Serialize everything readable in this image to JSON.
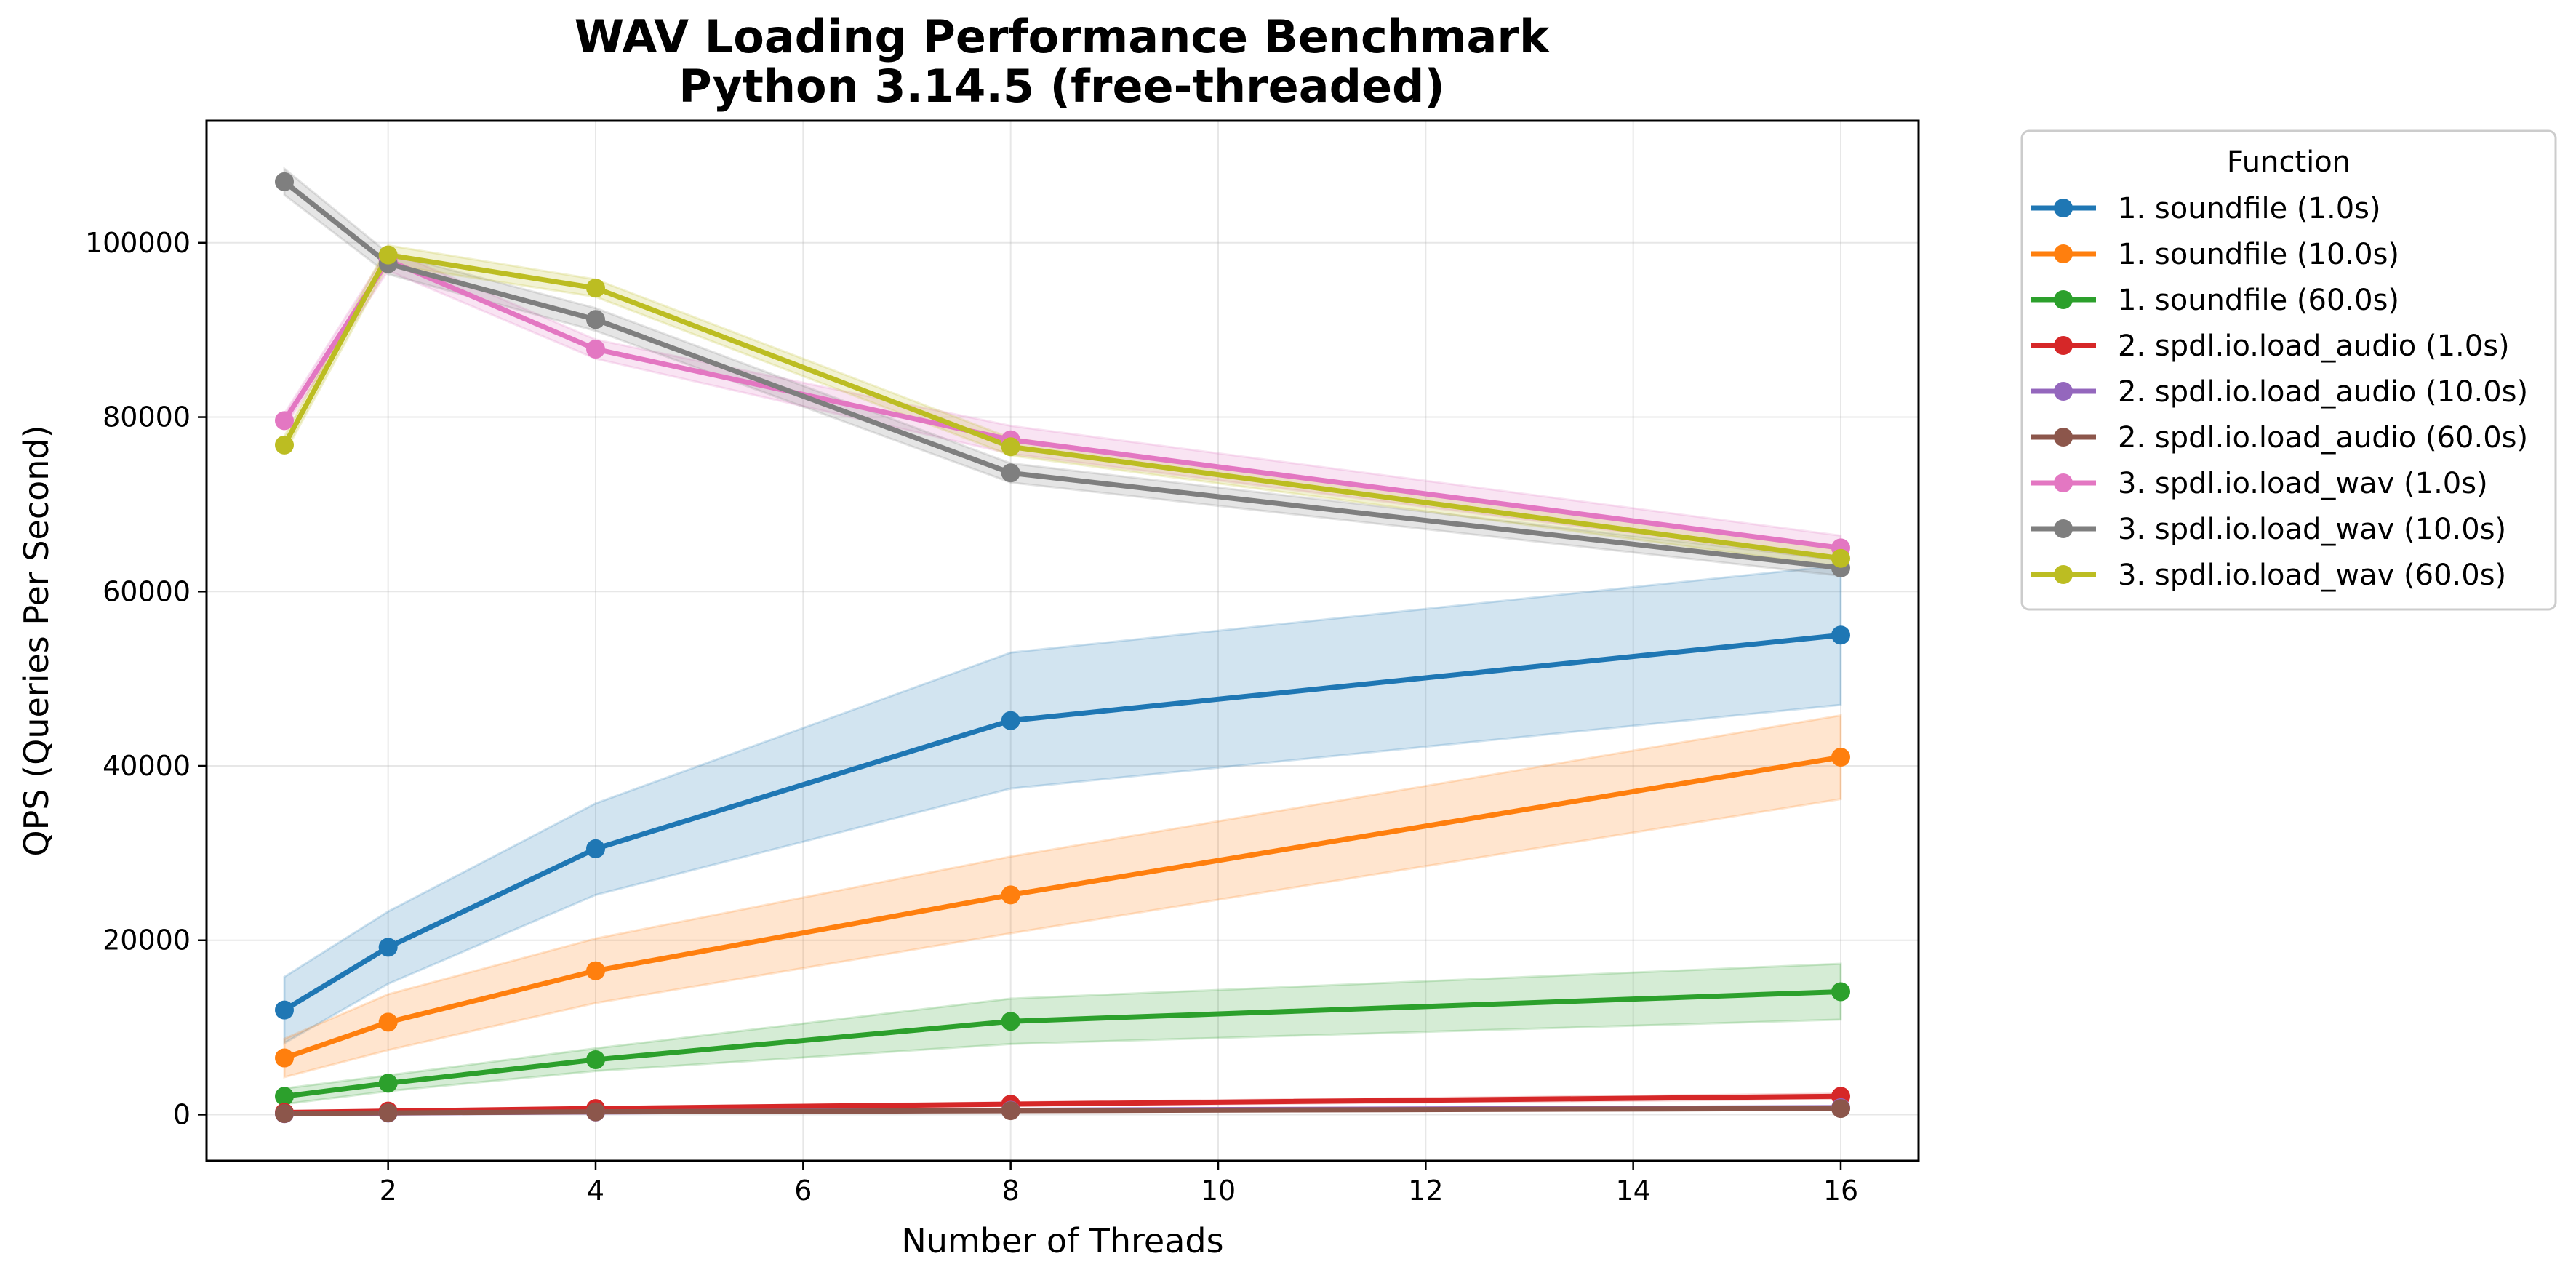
{
  "chart_data": {
    "type": "line",
    "title": "WAV Loading Performance Benchmark",
    "subtitle": "Python 3.14.5 (free-threaded)",
    "xlabel": "Number of Threads",
    "ylabel": "QPS (Queries Per Second)",
    "xlim": [
      0.25,
      16.75
    ],
    "ylim": [
      -5300,
      114000
    ],
    "xticks": [
      2,
      4,
      6,
      8,
      10,
      12,
      14,
      16
    ],
    "yticks": [
      0,
      20000,
      40000,
      60000,
      80000,
      100000
    ],
    "grid": true,
    "legend_title": "Function",
    "legend_position": "outside-right",
    "x": [
      1,
      2,
      4,
      8,
      16
    ],
    "series": [
      {
        "name": "1. soundfile (1.0s)",
        "color": "#1f77b4",
        "values": [
          12000,
          19200,
          30500,
          45200,
          55000
        ],
        "band_low": [
          8200,
          15000,
          25200,
          37400,
          47000
        ],
        "band_high": [
          15800,
          23300,
          35700,
          53000,
          63000
        ]
      },
      {
        "name": "1. soundfile (10.0s)",
        "color": "#ff7f0e",
        "values": [
          6500,
          10600,
          16500,
          25200,
          41000
        ],
        "band_low": [
          4300,
          7400,
          12800,
          20800,
          36200
        ],
        "band_high": [
          8700,
          13800,
          20200,
          29600,
          45800
        ]
      },
      {
        "name": "1. soundfile (60.0s)",
        "color": "#2ca02c",
        "values": [
          2100,
          3600,
          6300,
          10700,
          14100
        ],
        "band_low": [
          1200,
          2700,
          5000,
          8100,
          10900
        ],
        "band_high": [
          3000,
          4500,
          7600,
          13300,
          17300
        ]
      },
      {
        "name": "2. spdl.io.load_audio (1.0s)",
        "color": "#d62728",
        "values": [
          250,
          400,
          700,
          1200,
          2100
        ],
        "band_low": [
          150,
          300,
          550,
          1000,
          1800
        ],
        "band_high": [
          350,
          500,
          850,
          1400,
          2400
        ]
      },
      {
        "name": "2. spdl.io.load_audio (10.0s)",
        "color": "#9467bd",
        "values": [
          100,
          180,
          300,
          500,
          800
        ],
        "band_low": [
          60,
          120,
          220,
          400,
          650
        ],
        "band_high": [
          140,
          240,
          380,
          600,
          950
        ]
      },
      {
        "name": "2. spdl.io.load_audio (60.0s)",
        "color": "#8c564b",
        "values": [
          120,
          200,
          320,
          450,
          700
        ],
        "band_low": [
          80,
          150,
          250,
          360,
          560
        ],
        "band_high": [
          160,
          250,
          390,
          540,
          840
        ]
      },
      {
        "name": "3. spdl.io.load_wav (1.0s)",
        "color": "#e377c2",
        "values": [
          79600,
          98000,
          87800,
          77400,
          65000
        ],
        "band_low": [
          78800,
          96800,
          86700,
          75800,
          63600
        ],
        "band_high": [
          80400,
          99200,
          88900,
          79000,
          66400
        ]
      },
      {
        "name": "3. spdl.io.load_wav (10.0s)",
        "color": "#7f7f7f",
        "values": [
          107000,
          97600,
          91200,
          73600,
          62700
        ],
        "band_low": [
          105500,
          96400,
          89900,
          72500,
          61800
        ],
        "band_high": [
          108500,
          98800,
          92500,
          74700,
          63600
        ]
      },
      {
        "name": "3. spdl.io.load_wav (60.0s)",
        "color": "#bcbd22",
        "values": [
          76800,
          98600,
          94800,
          76600,
          63800
        ],
        "band_low": [
          75800,
          97500,
          93800,
          75600,
          62800
        ],
        "band_high": [
          77800,
          99700,
          95800,
          77600,
          64800
        ]
      }
    ]
  }
}
